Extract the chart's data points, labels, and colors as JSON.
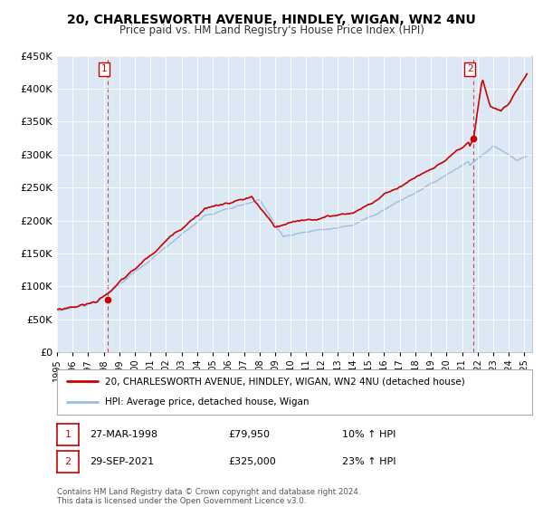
{
  "title": "20, CHARLESWORTH AVENUE, HINDLEY, WIGAN, WN2 4NU",
  "subtitle": "Price paid vs. HM Land Registry's House Price Index (HPI)",
  "sale1_date": "27-MAR-1998",
  "sale1_price": 79950,
  "sale1_price_str": "£79,950",
  "sale1_hpi": "10% ↑ HPI",
  "sale1_year": 1998.25,
  "sale2_date": "29-SEP-2021",
  "sale2_price": 325000,
  "sale2_price_str": "£325,000",
  "sale2_hpi": "23% ↑ HPI",
  "sale2_year": 2021.75,
  "legend_label1": "20, CHARLESWORTH AVENUE, HINDLEY, WIGAN, WN2 4NU (detached house)",
  "legend_label2": "HPI: Average price, detached house, Wigan",
  "footer1": "Contains HM Land Registry data © Crown copyright and database right 2024.",
  "footer2": "This data is licensed under the Open Government Licence v3.0.",
  "hpi_color": "#9dbde0",
  "sale_color": "#cc0000",
  "background_color": "#dce9f5",
  "grid_color": "#ffffff",
  "ylim_max": 450000,
  "xlim_start": 1995.0,
  "xlim_end": 2025.5
}
